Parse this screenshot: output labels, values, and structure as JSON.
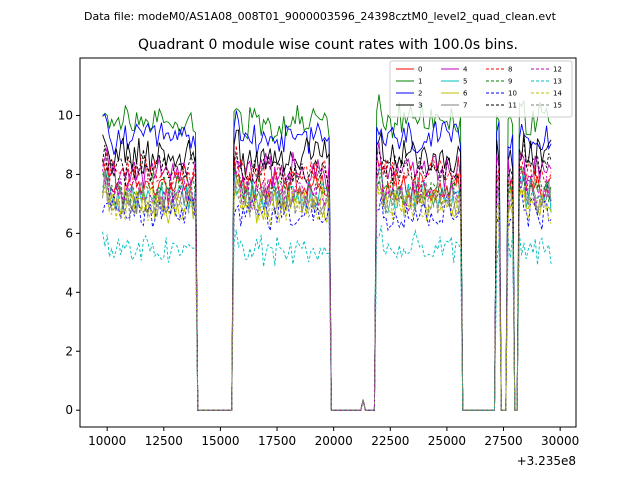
{
  "figure": {
    "suptitle": "Data file: modeM0/AS1A08_008T01_9000003596_24398cztM0_level2_quad_clean.evt"
  },
  "chart_data": {
    "type": "line",
    "title": "Quadrant 0 module wise count rates with 100.0s bins.",
    "xlabel": "",
    "ylabel": "",
    "x_offset_label": "+3.235e8",
    "xlim": [
      8800,
      30700
    ],
    "ylim": [
      -0.57,
      11.95
    ],
    "x_ticks": [
      10000,
      12500,
      15000,
      17500,
      20000,
      22500,
      25000,
      27500,
      30000
    ],
    "x_tick_labels": [
      "10000",
      "12500",
      "15000",
      "17500",
      "20000",
      "22500",
      "25000",
      "27500",
      "30000"
    ],
    "y_ticks": [
      0,
      2,
      4,
      6,
      8,
      10
    ],
    "y_tick_labels": [
      "0",
      "2",
      "4",
      "6",
      "8",
      "10"
    ],
    "legend_position": "top-right",
    "legend_columns": 4,
    "segments_on": [
      [
        9800,
        13950
      ],
      [
        15550,
        19850
      ],
      [
        21850,
        25650
      ],
      [
        27150,
        27300
      ],
      [
        27650,
        27950
      ],
      [
        28200,
        29600
      ]
    ],
    "spike": {
      "x": 21300,
      "value": 0.35
    },
    "bin_width_s": 100,
    "series": [
      {
        "name": "0",
        "color": "#ff0000",
        "dash": "solid",
        "level": 7.6
      },
      {
        "name": "1",
        "color": "#008000",
        "dash": "solid",
        "level": 9.8
      },
      {
        "name": "2",
        "color": "#0000ff",
        "dash": "solid",
        "level": 9.2
      },
      {
        "name": "3",
        "color": "#000000",
        "dash": "solid",
        "level": 8.6
      },
      {
        "name": "4",
        "color": "#bf00bf",
        "dash": "solid",
        "level": 8.1
      },
      {
        "name": "5",
        "color": "#00bfbf",
        "dash": "solid",
        "level": 7.3
      },
      {
        "name": "6",
        "color": "#bfbf00",
        "dash": "solid",
        "level": 7.0
      },
      {
        "name": "7",
        "color": "#808080",
        "dash": "solid",
        "level": 7.2
      },
      {
        "name": "8",
        "color": "#ff0000",
        "dash": "dashed",
        "level": 8.0
      },
      {
        "name": "9",
        "color": "#008000",
        "dash": "dashed",
        "level": 7.5
      },
      {
        "name": "10",
        "color": "#0000ff",
        "dash": "dashed",
        "level": 6.7
      },
      {
        "name": "11",
        "color": "#000000",
        "dash": "dashed",
        "level": 8.2
      },
      {
        "name": "12",
        "color": "#bf00bf",
        "dash": "dashed",
        "level": 7.4
      },
      {
        "name": "13",
        "color": "#00bfbf",
        "dash": "dashed",
        "level": 5.4
      },
      {
        "name": "14",
        "color": "#bfbf00",
        "dash": "dashed",
        "level": 6.9
      },
      {
        "name": "15",
        "color": "#808080",
        "dash": "dashed",
        "level": 7.1
      }
    ]
  }
}
